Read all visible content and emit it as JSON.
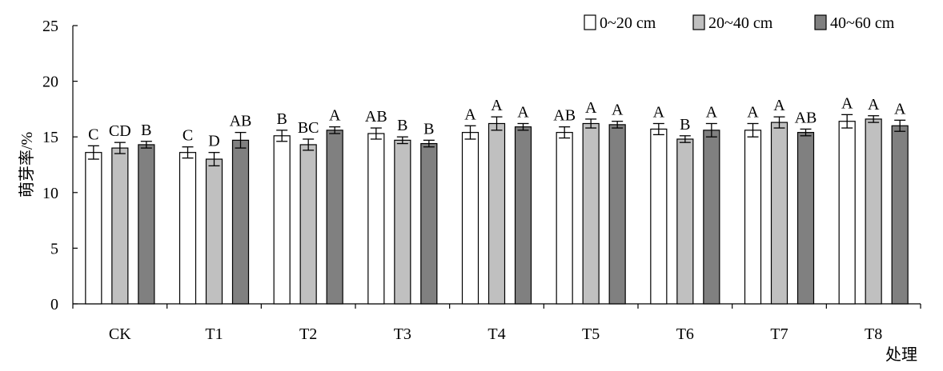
{
  "chart_data": {
    "type": "bar",
    "title": "",
    "xlabel": "处理",
    "ylabel": "萌芽率/%",
    "ylim": [
      0,
      25
    ],
    "yticks": [
      0,
      5,
      10,
      15,
      20,
      25
    ],
    "grid": false,
    "legend_position": "top-right",
    "categories": [
      "CK",
      "T1",
      "T2",
      "T3",
      "T4",
      "T5",
      "T6",
      "T7",
      "T8"
    ],
    "series": [
      {
        "name": "0~20 cm",
        "color": "#ffffff",
        "values": [
          13.6,
          13.6,
          15.1,
          15.3,
          15.4,
          15.4,
          15.7,
          15.6,
          16.4
        ],
        "errors": [
          0.6,
          0.5,
          0.5,
          0.5,
          0.6,
          0.5,
          0.5,
          0.6,
          0.6
        ],
        "significance": [
          "C",
          "C",
          "B",
          "AB",
          "A",
          "AB",
          "A",
          "A",
          "A"
        ]
      },
      {
        "name": "20~40 cm",
        "color": "#c0c0c0",
        "values": [
          14.0,
          13.0,
          14.3,
          14.7,
          16.2,
          16.2,
          14.8,
          16.3,
          16.6
        ],
        "errors": [
          0.5,
          0.6,
          0.5,
          0.3,
          0.6,
          0.4,
          0.3,
          0.5,
          0.3
        ],
        "significance": [
          "CD",
          "D",
          "BC",
          "B",
          "A",
          "A",
          "B",
          "A",
          "A"
        ]
      },
      {
        "name": "40~60 cm",
        "color": "#808080",
        "values": [
          14.3,
          14.7,
          15.6,
          14.4,
          15.9,
          16.1,
          15.6,
          15.4,
          16.0
        ],
        "errors": [
          0.3,
          0.7,
          0.3,
          0.3,
          0.3,
          0.3,
          0.6,
          0.3,
          0.5
        ],
        "significance": [
          "B",
          "AB",
          "A",
          "B",
          "A",
          "A",
          "A",
          "AB",
          "A"
        ]
      }
    ]
  }
}
